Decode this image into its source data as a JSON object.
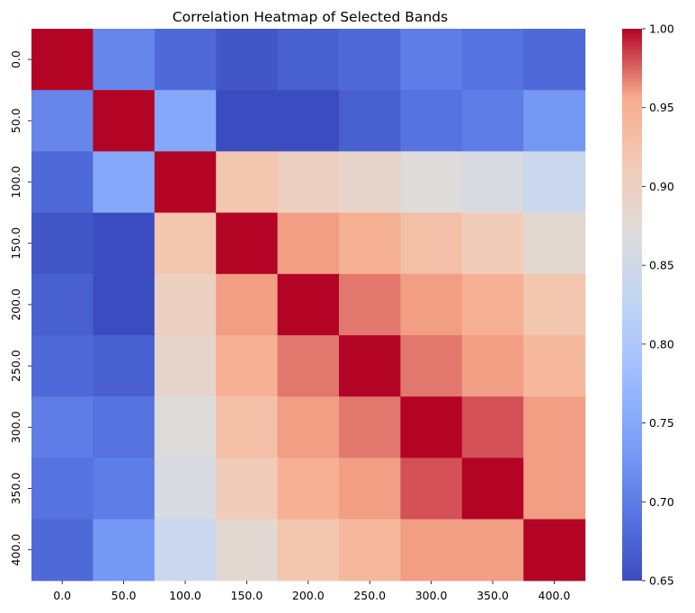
{
  "chart_data": {
    "type": "heatmap",
    "title": "Correlation Heatmap of Selected Bands",
    "xlabel": "",
    "ylabel": "",
    "x_categories": [
      "0.0",
      "50.0",
      "100.0",
      "150.0",
      "200.0",
      "250.0",
      "300.0",
      "350.0",
      "400.0"
    ],
    "y_categories": [
      "0.0",
      "50.0",
      "100.0",
      "150.0",
      "200.0",
      "250.0",
      "300.0",
      "350.0",
      "400.0"
    ],
    "values": [
      [
        1.0,
        0.71,
        0.68,
        0.66,
        0.67,
        0.68,
        0.7,
        0.69,
        0.68
      ],
      [
        0.71,
        1.0,
        0.75,
        0.65,
        0.65,
        0.67,
        0.69,
        0.7,
        0.73
      ],
      [
        0.68,
        0.75,
        1.0,
        0.92,
        0.9,
        0.89,
        0.87,
        0.86,
        0.84
      ],
      [
        0.66,
        0.65,
        0.92,
        1.0,
        0.96,
        0.95,
        0.93,
        0.91,
        0.88
      ],
      [
        0.67,
        0.65,
        0.9,
        0.96,
        1.0,
        0.97,
        0.96,
        0.95,
        0.92
      ],
      [
        0.68,
        0.67,
        0.89,
        0.95,
        0.97,
        1.0,
        0.97,
        0.96,
        0.94
      ],
      [
        0.7,
        0.69,
        0.87,
        0.93,
        0.96,
        0.97,
        1.0,
        0.98,
        0.96
      ],
      [
        0.69,
        0.7,
        0.86,
        0.91,
        0.95,
        0.96,
        0.98,
        1.0,
        0.96
      ],
      [
        0.68,
        0.73,
        0.84,
        0.88,
        0.92,
        0.94,
        0.96,
        0.96,
        1.0
      ]
    ],
    "colormap": "coolwarm",
    "vmin": 0.65,
    "vmax": 1.0,
    "colorbar_ticks": [
      "0.65",
      "0.70",
      "0.75",
      "0.80",
      "0.85",
      "0.90",
      "0.95",
      "1.00"
    ],
    "grid": false,
    "legend": "colorbar-right"
  }
}
